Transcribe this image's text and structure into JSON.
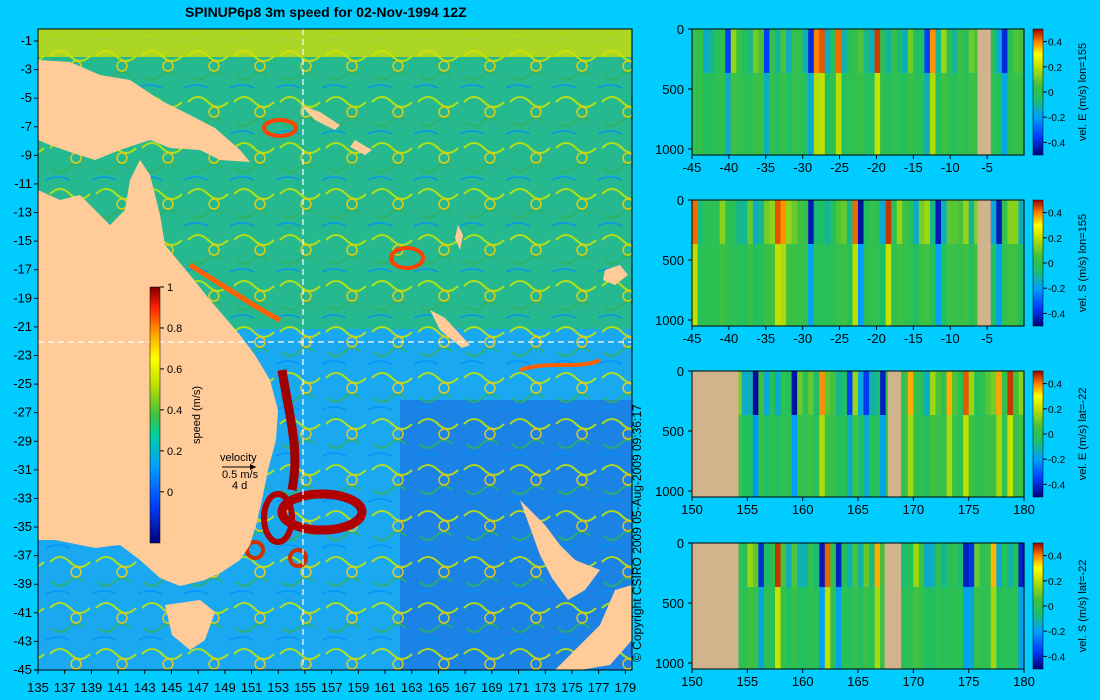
{
  "title": "SPINUP6p8 3m speed for 02-Nov-1994 12Z",
  "copyright": "© Copyright CSIRO 2009  05-Aug-2009 09:36:17",
  "colors": {
    "background": "#00ccff",
    "land": "#ffcc99",
    "section_land": "#d2b48c",
    "colormap": [
      "#000080",
      "#0000ff",
      "#0080ff",
      "#00c0ff",
      "#00e080",
      "#40c040",
      "#c0e000",
      "#ffff00",
      "#ffa000",
      "#ff0000",
      "#800000"
    ]
  },
  "map": {
    "lon_ticks": [
      "135",
      "137",
      "139",
      "141",
      "143",
      "145",
      "147",
      "149",
      "151",
      "153",
      "155",
      "157",
      "159",
      "161",
      "163",
      "165",
      "167",
      "169",
      "171",
      "173",
      "175",
      "177",
      "179"
    ],
    "lat_ticks": [
      "-1",
      "-3",
      "-5",
      "-7",
      "-9",
      "-11",
      "-13",
      "-15",
      "-17",
      "-19",
      "-21",
      "-23",
      "-25",
      "-27",
      "-29",
      "-31",
      "-33",
      "-35",
      "-37",
      "-39",
      "-41",
      "-43",
      "-45"
    ],
    "section_lon": "155",
    "section_lat": "-22",
    "colorbar_label": "speed (m/s)",
    "colorbar_ticks": [
      "1",
      "0.8",
      "0.6",
      "0.4",
      "0.2",
      "0"
    ],
    "velocity_key": [
      "velocity",
      "0.5 m/s",
      "4 d"
    ]
  },
  "chart_data": [
    {
      "type": "heatmap",
      "ylabel": "vel. E (m/s) lon=155",
      "x_ticks": [
        "-45",
        "-40",
        "-35",
        "-30",
        "-25",
        "-20",
        "-15",
        "-10",
        "-5"
      ],
      "x_range": [
        -45,
        0
      ],
      "y_ticks": [
        "0",
        "500",
        "1000"
      ],
      "y_range": [
        0,
        1050
      ],
      "colorbar_ticks": [
        "0.4",
        "0.2",
        "0",
        "-0.2",
        "-0.4"
      ],
      "colorbar_range": [
        -0.5,
        0.5
      ]
    },
    {
      "type": "heatmap",
      "ylabel": "vel. S (m/s) lon=155",
      "x_ticks": [
        "-45",
        "-40",
        "-35",
        "-30",
        "-25",
        "-20",
        "-15",
        "-10",
        "-5"
      ],
      "x_range": [
        -45,
        0
      ],
      "y_ticks": [
        "0",
        "500",
        "1000"
      ],
      "y_range": [
        0,
        1050
      ],
      "colorbar_ticks": [
        "0.4",
        "0.2",
        "0",
        "-0.2",
        "-0.4"
      ],
      "colorbar_range": [
        -0.5,
        0.5
      ]
    },
    {
      "type": "heatmap",
      "ylabel": "vel. E (m/s) lat=-22",
      "x_ticks": [
        "150",
        "155",
        "160",
        "165",
        "170",
        "175",
        "180"
      ],
      "x_range": [
        150,
        180
      ],
      "y_ticks": [
        "0",
        "500",
        "1000"
      ],
      "y_range": [
        0,
        1050
      ],
      "colorbar_ticks": [
        "0.4",
        "0.2",
        "0",
        "-0.2",
        "-0.4"
      ],
      "colorbar_range": [
        -0.5,
        0.5
      ]
    },
    {
      "type": "heatmap",
      "ylabel": "vel. S (m/s) lat=-22",
      "x_ticks": [
        "150",
        "155",
        "160",
        "165",
        "170",
        "175",
        "180"
      ],
      "x_range": [
        150,
        180
      ],
      "y_ticks": [
        "0",
        "500",
        "1000"
      ],
      "y_range": [
        0,
        1050
      ],
      "colorbar_ticks": [
        "0.4",
        "0.2",
        "0",
        "-0.2",
        "-0.4"
      ],
      "colorbar_range": [
        -0.5,
        0.5
      ]
    }
  ]
}
